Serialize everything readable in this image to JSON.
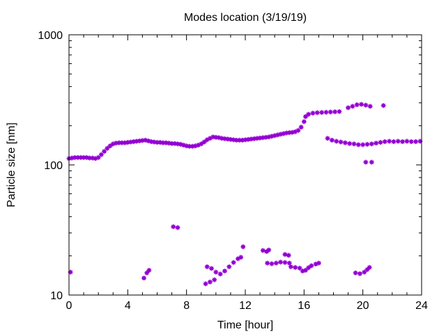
{
  "chart_data": {
    "type": "scatter",
    "title": "Modes location (3/19/19)",
    "xlabel": "Time [hour]",
    "ylabel": "Particle size [nm]",
    "xlim": [
      0,
      24
    ],
    "ylim": [
      10,
      1000
    ],
    "yscale": "log",
    "grid": false,
    "legend": "none",
    "marker_color": "#9400d3",
    "xticks": [
      {
        "value": 0,
        "label": "0"
      },
      {
        "value": 4,
        "label": "4"
      },
      {
        "value": 8,
        "label": "8"
      },
      {
        "value": 12,
        "label": "12"
      },
      {
        "value": 16,
        "label": "16"
      },
      {
        "value": 20,
        "label": "20"
      },
      {
        "value": 24,
        "label": "24"
      }
    ],
    "yticks": [
      {
        "value": 10,
        "label": "10"
      },
      {
        "value": 100,
        "label": "100"
      },
      {
        "value": 1000,
        "label": "1000"
      }
    ],
    "series": [
      {
        "points": [
          [
            0,
            112
          ],
          [
            0.2,
            113
          ],
          [
            0.4,
            114
          ],
          [
            0.6,
            114
          ],
          [
            0.8,
            114
          ],
          [
            1.0,
            114
          ],
          [
            1.2,
            114
          ],
          [
            1.4,
            113
          ],
          [
            1.6,
            113
          ],
          [
            1.8,
            112
          ],
          [
            2.0,
            114
          ],
          [
            2.2,
            120
          ],
          [
            2.4,
            127
          ],
          [
            2.6,
            134
          ],
          [
            2.8,
            140
          ],
          [
            3.0,
            145
          ],
          [
            3.2,
            147
          ],
          [
            3.4,
            148
          ],
          [
            3.6,
            148
          ],
          [
            3.8,
            148
          ],
          [
            4.0,
            149
          ],
          [
            4.2,
            150
          ],
          [
            4.4,
            151
          ],
          [
            4.6,
            152
          ],
          [
            4.8,
            153
          ],
          [
            5.0,
            154
          ],
          [
            5.2,
            155
          ],
          [
            5.4,
            153
          ],
          [
            5.6,
            151
          ],
          [
            5.8,
            150
          ],
          [
            6.0,
            149
          ],
          [
            6.2,
            149
          ],
          [
            6.4,
            148
          ],
          [
            6.6,
            148
          ],
          [
            6.8,
            147
          ],
          [
            7.0,
            146
          ],
          [
            7.2,
            146
          ],
          [
            7.4,
            145
          ],
          [
            7.6,
            144
          ],
          [
            7.8,
            142
          ],
          [
            8.0,
            140
          ],
          [
            8.2,
            139
          ],
          [
            8.4,
            139
          ],
          [
            8.6,
            140
          ],
          [
            8.8,
            142
          ],
          [
            9.0,
            145
          ],
          [
            9.2,
            150
          ],
          [
            9.4,
            156
          ],
          [
            9.6,
            160
          ],
          [
            9.8,
            164
          ],
          [
            10.0,
            163
          ],
          [
            10.2,
            162
          ],
          [
            10.4,
            160
          ],
          [
            10.6,
            159
          ],
          [
            10.8,
            158
          ],
          [
            11.0,
            157
          ],
          [
            11.2,
            156
          ],
          [
            11.4,
            155
          ],
          [
            11.6,
            155
          ],
          [
            11.8,
            155
          ],
          [
            12.0,
            156
          ],
          [
            12.2,
            157
          ],
          [
            12.4,
            158
          ],
          [
            12.6,
            159
          ],
          [
            12.8,
            160
          ],
          [
            13.0,
            161
          ],
          [
            13.2,
            162
          ],
          [
            13.4,
            163
          ],
          [
            13.6,
            164
          ],
          [
            13.8,
            166
          ],
          [
            14.0,
            168
          ],
          [
            14.2,
            170
          ],
          [
            14.4,
            172
          ],
          [
            14.6,
            174
          ],
          [
            14.8,
            176
          ],
          [
            15.0,
            177
          ],
          [
            15.2,
            178
          ],
          [
            15.4,
            180
          ],
          [
            15.6,
            184
          ],
          [
            15.8,
            195
          ],
          [
            16.0,
            215
          ],
          [
            16.1,
            235
          ],
          [
            16.3,
            245
          ],
          [
            16.6,
            250
          ],
          [
            16.9,
            252
          ],
          [
            17.2,
            253
          ],
          [
            17.5,
            254
          ],
          [
            17.8,
            255
          ],
          [
            18.1,
            256
          ],
          [
            18.4,
            257
          ],
          [
            17.6,
            160
          ],
          [
            17.9,
            155
          ],
          [
            18.2,
            152
          ],
          [
            18.5,
            150
          ],
          [
            18.8,
            148
          ],
          [
            19.1,
            146
          ],
          [
            19.4,
            145
          ],
          [
            19.7,
            143
          ],
          [
            20.0,
            143
          ],
          [
            20.3,
            144
          ],
          [
            20.6,
            145
          ],
          [
            20.9,
            147
          ],
          [
            21.2,
            149
          ],
          [
            21.5,
            151
          ],
          [
            21.8,
            152
          ],
          [
            22.1,
            151
          ],
          [
            22.4,
            152
          ],
          [
            22.7,
            151
          ],
          [
            23.0,
            152
          ],
          [
            23.3,
            151
          ],
          [
            23.6,
            151
          ],
          [
            23.9,
            152
          ],
          [
            19.0,
            275
          ],
          [
            19.3,
            282
          ],
          [
            19.6,
            290
          ],
          [
            19.9,
            292
          ],
          [
            20.2,
            288
          ],
          [
            20.5,
            282
          ],
          [
            21.4,
            286
          ],
          [
            20.2,
            105
          ],
          [
            20.6,
            105
          ],
          [
            0.1,
            15
          ],
          [
            5.1,
            13.5
          ],
          [
            5.3,
            14.8
          ],
          [
            5.45,
            15.5
          ],
          [
            7.1,
            33.5
          ],
          [
            7.4,
            33
          ],
          [
            9.3,
            12.2
          ],
          [
            9.6,
            12.6
          ],
          [
            9.9,
            13.1
          ],
          [
            9.4,
            16.5
          ],
          [
            9.7,
            16
          ],
          [
            10.0,
            15
          ],
          [
            10.3,
            14.5
          ],
          [
            10.6,
            15.3
          ],
          [
            10.9,
            16.5
          ],
          [
            11.2,
            17.8
          ],
          [
            11.5,
            19
          ],
          [
            11.7,
            19.5
          ],
          [
            11.85,
            23.5
          ],
          [
            13.2,
            22
          ],
          [
            13.45,
            21.6
          ],
          [
            13.6,
            22.2
          ],
          [
            13.5,
            17.6
          ],
          [
            13.8,
            17.4
          ],
          [
            14.1,
            17.6
          ],
          [
            14.4,
            17.9
          ],
          [
            14.7,
            17.8
          ],
          [
            15.0,
            17.6
          ],
          [
            14.7,
            20.5
          ],
          [
            14.95,
            20.2
          ],
          [
            15.1,
            16.5
          ],
          [
            15.4,
            16.3
          ],
          [
            15.7,
            16.1
          ],
          [
            15.9,
            15.3
          ],
          [
            16.1,
            15.5
          ],
          [
            16.3,
            16.2
          ],
          [
            16.5,
            16.8
          ],
          [
            16.8,
            17.3
          ],
          [
            17.0,
            17.6
          ],
          [
            19.5,
            14.8
          ],
          [
            19.8,
            14.6
          ],
          [
            20.1,
            15
          ],
          [
            20.3,
            15.7
          ],
          [
            20.45,
            16.3
          ]
        ]
      }
    ]
  }
}
